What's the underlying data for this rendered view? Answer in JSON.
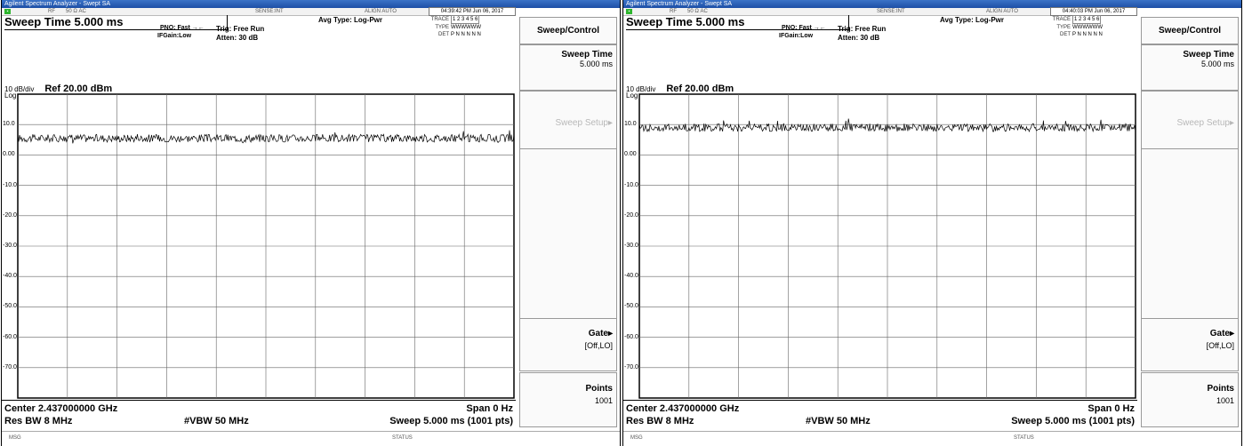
{
  "panes": [
    {
      "window_title": "Agilent Spectrum Analyzer - Swept SA",
      "status_row": {
        "rf": "RF",
        "impedance": "50 Ω AC",
        "sense": "SENSE:INT",
        "align": "ALIGN AUTO",
        "time": "04:39:42 PM Jun 06, 2017"
      },
      "sweep_title": "Sweep Time 5.000 ms",
      "pno": "PNO: Fast",
      "ifgain": "IFGain:Low",
      "trig": "Trig: Free Run",
      "atten": "Atten: 30 dB",
      "avg_type": "Avg Type: Log-Pwr",
      "trace": {
        "trace_label": "TRACE",
        "trace_nums": "1 2 3 4 5 6",
        "type_label": "TYPE",
        "type_vals": "WWWWWW",
        "det_label": "DET",
        "det_vals": "P N N N N N"
      },
      "ref": {
        "scale": "10 dB/div",
        "level": "Ref 20.00 dBm",
        "log": "Log"
      },
      "y_ticks": [
        "10.0",
        "0.00",
        "-10.0",
        "-20.0",
        "-30.0",
        "-40.0",
        "-50.0",
        "-60.0",
        "-70.0"
      ],
      "center": "Center 2.437000000 GHz",
      "res_bw": "Res BW 8 MHz",
      "vbw": "#VBW 50 MHz",
      "span": "Span 0 Hz",
      "sweep": "Sweep  5.000 ms (1001 pts)",
      "trace_level_dbm": 5.5,
      "softkeys": {
        "menu": "Sweep/Control",
        "sweep_time": "Sweep Time",
        "sweep_time_val": "5.000 ms",
        "sweep_setup": "Sweep Setup",
        "gate": "Gate",
        "gate_val": "[Off,LO]",
        "points": "Points",
        "points_val": "1001"
      },
      "msg": "MSG",
      "status": "STATUS"
    },
    {
      "window_title": "Agilent Spectrum Analyzer - Swept SA",
      "status_row": {
        "rf": "RF",
        "impedance": "50 Ω AC",
        "sense": "SENSE:INT",
        "align": "ALIGN AUTO",
        "time": "04:40:03 PM Jun 06, 2017"
      },
      "sweep_title": "Sweep Time 5.000 ms",
      "pno": "PNO: Fast",
      "ifgain": "IFGain:Low",
      "trig": "Trig: Free Run",
      "atten": "Atten: 30 dB",
      "avg_type": "Avg Type: Log-Pwr",
      "trace": {
        "trace_label": "TRACE",
        "trace_nums": "1 2 3 4 5 6",
        "type_label": "TYPE",
        "type_vals": "WWWWWW",
        "det_label": "DET",
        "det_vals": "P N N N N N"
      },
      "ref": {
        "scale": "10 dB/div",
        "level": "Ref 20.00 dBm",
        "log": "Log"
      },
      "y_ticks": [
        "10.0",
        "0.00",
        "-10.0",
        "-20.0",
        "-30.0",
        "-40.0",
        "-50.0",
        "-60.0",
        "-70.0"
      ],
      "center": "Center 2.437000000 GHz",
      "res_bw": "Res BW 8 MHz",
      "vbw": "#VBW 50 MHz",
      "span": "Span 0 Hz",
      "sweep": "Sweep  5.000 ms (1001 pts)",
      "trace_level_dbm": 9.0,
      "softkeys": {
        "menu": "Sweep/Control",
        "sweep_time": "Sweep Time",
        "sweep_time_val": "5.000 ms",
        "sweep_setup": "Sweep Setup",
        "gate": "Gate",
        "gate_val": "[Off,LO]",
        "points": "Points",
        "points_val": "1001"
      },
      "msg": "MSG",
      "status": "STATUS"
    }
  ],
  "colors": {
    "grid": "#000000",
    "trace": "#000000",
    "titlebar": "#2a5fb8",
    "disabled": "#b8b8b8"
  }
}
